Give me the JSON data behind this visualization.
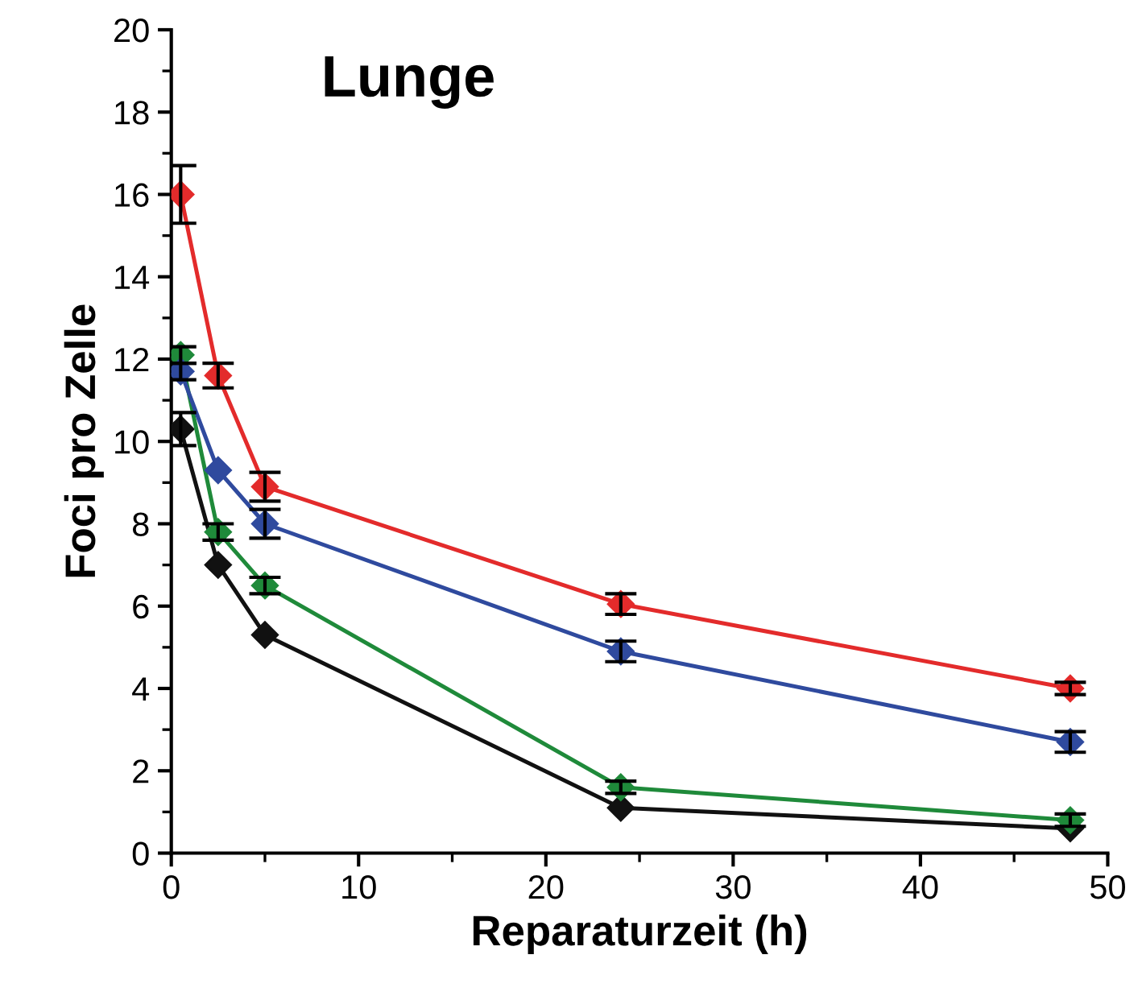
{
  "chart_data": {
    "type": "line",
    "title": "Lunge",
    "xlabel": "Reparaturzeit (h)",
    "ylabel": "Foci pro Zelle",
    "marker": "diamond",
    "line_style": "solid",
    "grid": false,
    "legend": false,
    "xlim": [
      0,
      50
    ],
    "xticks": [
      0,
      10,
      20,
      30,
      40,
      50
    ],
    "ylim": [
      0,
      20
    ],
    "yticks": [
      0,
      2,
      4,
      6,
      8,
      10,
      12,
      14,
      16,
      18,
      20
    ],
    "series": [
      {
        "color": "#e32b2b",
        "x": [
          0.5,
          2.5,
          5,
          24,
          48
        ],
        "values": [
          16.0,
          11.6,
          8.9,
          6.05,
          4.0
        ],
        "errors": [
          0.7,
          0.3,
          0.35,
          0.25,
          0.15
        ]
      },
      {
        "color": "#2f4a9e",
        "x": [
          0.5,
          2.5,
          5,
          24,
          48
        ],
        "values": [
          11.7,
          9.3,
          8.0,
          4.9,
          2.7
        ],
        "errors": [
          0.2,
          null,
          0.35,
          0.25,
          0.25
        ]
      },
      {
        "color": "#1f8a3a",
        "x": [
          0.5,
          2.5,
          5,
          24,
          48
        ],
        "values": [
          12.1,
          7.8,
          6.5,
          1.6,
          0.8
        ],
        "errors": [
          0.2,
          0.2,
          0.2,
          0.15,
          0.15
        ]
      },
      {
        "color": "#111111",
        "x": [
          0.5,
          2.5,
          5,
          24,
          48
        ],
        "values": [
          10.3,
          7.0,
          5.3,
          1.1,
          0.6
        ],
        "errors": [
          0.4,
          null,
          null,
          null,
          null
        ]
      }
    ]
  }
}
